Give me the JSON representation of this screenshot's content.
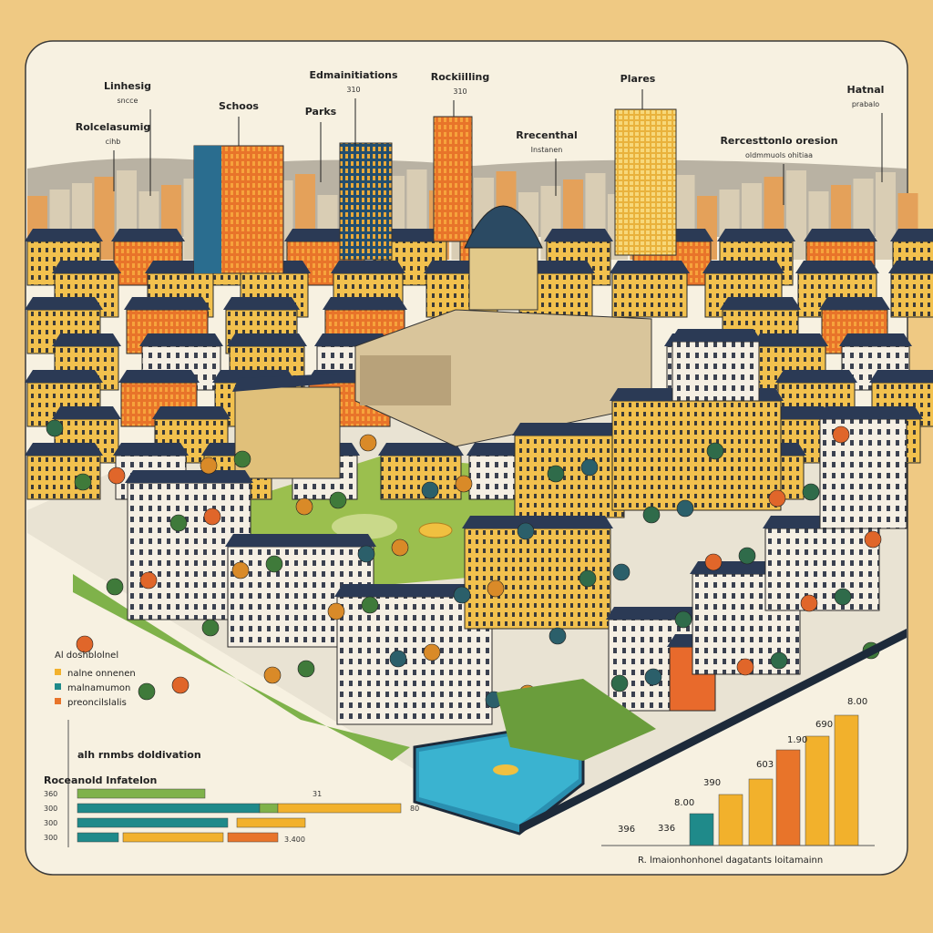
{
  "callouts": [
    {
      "text": "Linhesig",
      "sub": "sncce"
    },
    {
      "text": "Schoos"
    },
    {
      "text": "Parks"
    },
    {
      "text": "Edmainitiations",
      "sub": "310"
    },
    {
      "text": "Rockiilling",
      "sub": "310"
    },
    {
      "text": "Plares"
    },
    {
      "text": "Hatnal",
      "sub": "prabalo"
    },
    {
      "text": "Rolcelasumig",
      "sub": "cihb"
    },
    {
      "text": "Rrecenthal",
      "sub": "Instanen"
    },
    {
      "text": "Rercesttonlo oresion",
      "sub": "oldmmuols ohitiaa"
    }
  ],
  "legend": {
    "title": "Al doshblolnel",
    "items": [
      "nalne onnenen",
      "malnamumon",
      "preoncilslalis"
    ]
  },
  "left_chart": {
    "title": "alh rnmbs doldivation",
    "subtitle": "Roceanold Infatelon",
    "row_labels": [
      "360",
      "300",
      "300",
      "300"
    ],
    "value_labels": [
      "31",
      "80",
      "3.400"
    ]
  },
  "right_chart": {
    "value_labels": [
      "8.00",
      "1.90",
      "690",
      "603",
      "390",
      "8.00",
      "396",
      "336"
    ],
    "caption": "R. lmaionhonhonel dagatants loitamainn"
  }
}
